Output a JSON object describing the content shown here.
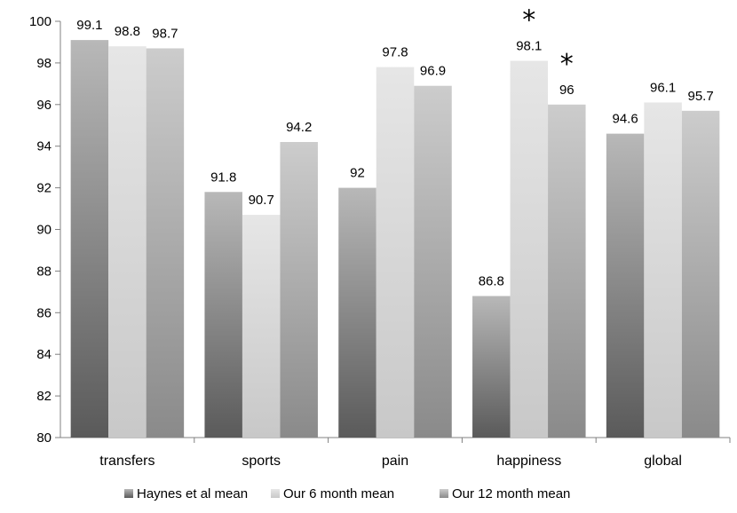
{
  "chart_data": {
    "type": "bar",
    "title": "",
    "xlabel": "",
    "ylabel": "",
    "categories": [
      "transfers",
      "sports",
      "pain",
      "happiness",
      "global"
    ],
    "series": [
      {
        "name": "Haynes et al mean",
        "values": [
          99.1,
          91.8,
          92,
          86.8,
          94.6
        ],
        "labels": [
          "99.1",
          "91.8",
          "92",
          "86.8",
          "94.6"
        ],
        "color_top": "#b8b8b8",
        "color_bottom": "#5a5a5a"
      },
      {
        "name": "Our 6 month mean",
        "values": [
          98.8,
          90.7,
          97.8,
          98.1,
          96.1
        ],
        "labels": [
          "98.8",
          "90.7",
          "97.8",
          "98.1",
          "96.1"
        ],
        "color_top": "#e6e6e6",
        "color_bottom": "#c8c8c8"
      },
      {
        "name": "Our 12 month mean",
        "values": [
          98.7,
          94.2,
          96.9,
          96,
          95.7
        ],
        "labels": [
          "98.7",
          "94.2",
          "96.9",
          "96",
          "95.7"
        ],
        "color_top": "#cccccc",
        "color_bottom": "#8a8a8a"
      }
    ],
    "ylim": [
      80,
      100
    ],
    "yticks": [
      "80",
      "82",
      "84",
      "86",
      "88",
      "90",
      "92",
      "94",
      "96",
      "98",
      "100"
    ],
    "grid": false,
    "legend_position": "bottom",
    "annotations": [
      {
        "text": "*",
        "category": "happiness",
        "series": 1
      },
      {
        "text": "*",
        "category": "happiness",
        "series": 2
      }
    ]
  }
}
